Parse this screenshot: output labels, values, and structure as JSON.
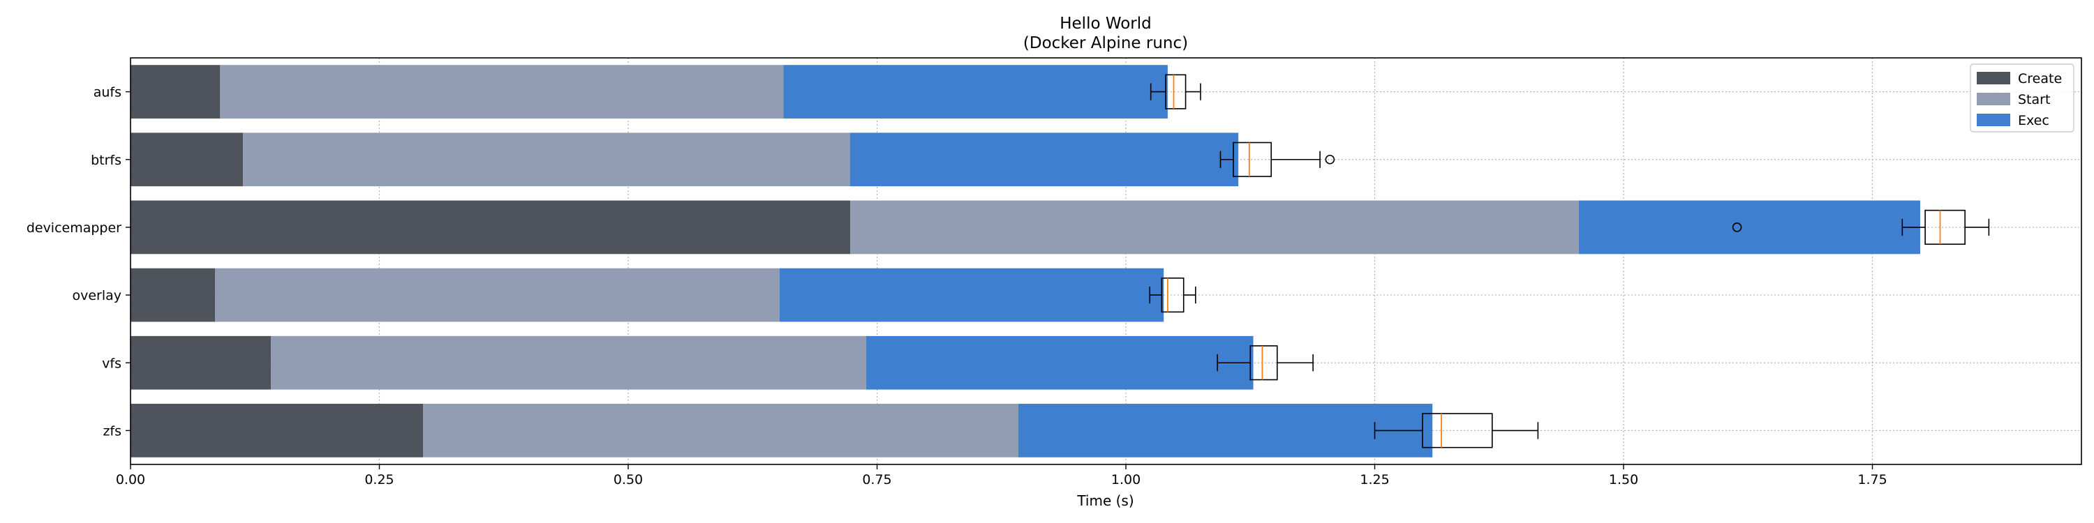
{
  "chart_data": {
    "type": "bar",
    "orientation": "horizontal",
    "stacked": true,
    "title": "Hello World",
    "subtitle": "(Docker Alpine runc)",
    "xlabel": "Time (s)",
    "ylabel": "",
    "xlim": [
      0,
      1.96
    ],
    "x_ticks": [
      "0.00",
      "0.25",
      "0.50",
      "0.75",
      "1.00",
      "1.25",
      "1.50",
      "1.75"
    ],
    "grid": true,
    "legend_position": "top-right",
    "categories": [
      "aufs",
      "btrfs",
      "devicemapper",
      "overlay",
      "vfs",
      "zfs"
    ],
    "series": [
      {
        "name": "Create",
        "color": "#4f535c",
        "values": [
          0.09,
          0.113,
          0.723,
          0.085,
          0.141,
          0.294
        ]
      },
      {
        "name": "Start",
        "color": "#929db3",
        "values": [
          0.566,
          0.61,
          0.732,
          0.567,
          0.598,
          0.598
        ]
      },
      {
        "name": "Exec",
        "color": "#3f7fcf",
        "values": [
          0.386,
          0.39,
          0.343,
          0.386,
          0.389,
          0.416
        ]
      }
    ],
    "boxplots": [
      {
        "category": "aufs",
        "whisker_low": 1.025,
        "q1": 1.04,
        "median": 1.048,
        "q3": 1.06,
        "whisker_high": 1.075,
        "outliers": []
      },
      {
        "category": "btrfs",
        "whisker_low": 1.095,
        "q1": 1.108,
        "median": 1.124,
        "q3": 1.146,
        "whisker_high": 1.195,
        "outliers": [
          1.205
        ]
      },
      {
        "category": "devicemapper",
        "whisker_low": 1.78,
        "q1": 1.803,
        "median": 1.818,
        "q3": 1.843,
        "whisker_high": 1.867,
        "outliers": [
          1.614
        ]
      },
      {
        "category": "overlay",
        "whisker_low": 1.024,
        "q1": 1.036,
        "median": 1.042,
        "q3": 1.058,
        "whisker_high": 1.07,
        "outliers": []
      },
      {
        "category": "vfs",
        "whisker_low": 1.092,
        "q1": 1.125,
        "median": 1.137,
        "q3": 1.152,
        "whisker_high": 1.188,
        "outliers": []
      },
      {
        "category": "zfs",
        "whisker_low": 1.25,
        "q1": 1.298,
        "median": 1.317,
        "q3": 1.368,
        "whisker_high": 1.414,
        "outliers": []
      }
    ],
    "box_colors": {
      "box": "#000000",
      "median": "#ff7f0e"
    }
  }
}
